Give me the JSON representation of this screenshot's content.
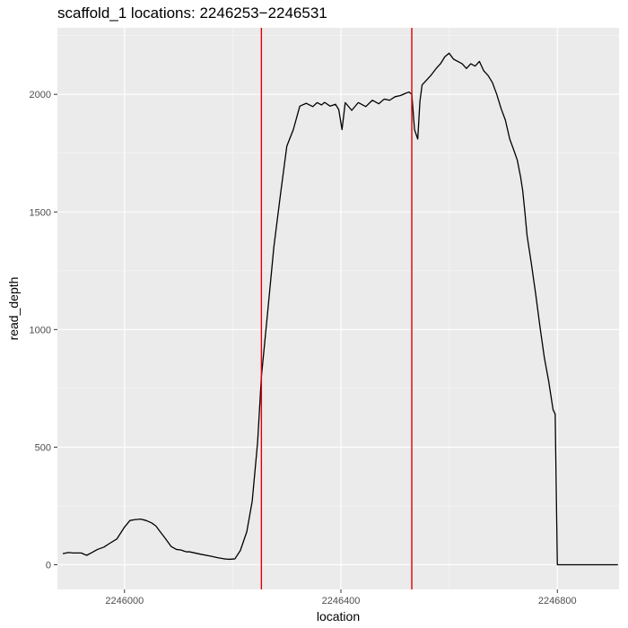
{
  "chart_data": {
    "type": "line",
    "title": "scaffold_1 locations: 2246253−2246531",
    "xlabel": "location",
    "ylabel": "read_depth",
    "xlim": [
      2245876,
      2246914
    ],
    "ylim": [
      -105,
      2283
    ],
    "x_ticks": [
      2246000,
      2246400,
      2246800
    ],
    "x_tick_labels": [
      "2246000",
      "2246400",
      "2246800"
    ],
    "y_ticks": [
      0,
      500,
      1000,
      1500,
      2000
    ],
    "y_tick_labels": [
      "0",
      "500",
      "1000",
      "1500",
      "2000"
    ],
    "grid": true,
    "vlines": [
      {
        "x": 2246253,
        "color": "#e00000"
      },
      {
        "x": 2246531,
        "color": "#e00000"
      }
    ],
    "series": [
      {
        "name": "read_depth",
        "color": "#000000",
        "x": [
          2245886,
          2245896,
          2245906,
          2245920,
          2245930,
          2245940,
          2245950,
          2245962,
          2245972,
          2245986,
          2246000,
          2246010,
          2246020,
          2246030,
          2246040,
          2246050,
          2246058,
          2246066,
          2246076,
          2246086,
          2246096,
          2246104,
          2246110,
          2246114,
          2246120,
          2246140,
          2246160,
          2246172,
          2246184,
          2246194,
          2246204,
          2246214,
          2246226,
          2246236,
          2246246,
          2246253,
          2246264,
          2246276,
          2246288,
          2246300,
          2246312,
          2246324,
          2246336,
          2246348,
          2246356,
          2246364,
          2246370,
          2246380,
          2246390,
          2246396,
          2246402,
          2246408,
          2246420,
          2246432,
          2246446,
          2246458,
          2246470,
          2246480,
          2246490,
          2246500,
          2246510,
          2246520,
          2246526,
          2246531,
          2246536,
          2246542,
          2246546,
          2246550,
          2246558,
          2246566,
          2246576,
          2246584,
          2246592,
          2246600,
          2246608,
          2246616,
          2246624,
          2246632,
          2246640,
          2246648,
          2246656,
          2246664,
          2246672,
          2246680,
          2246688,
          2246696,
          2246704,
          2246712,
          2246720,
          2246726,
          2246732,
          2246736,
          2246740,
          2246744,
          2246752,
          2246760,
          2246768,
          2246776,
          2246784,
          2246792,
          2246796,
          2246800,
          2246804,
          2246808,
          2246810,
          2246818,
          2246830,
          2246850,
          2246880,
          2246912
        ],
        "y": [
          47,
          52,
          50,
          50,
          40,
          52,
          65,
          75,
          90,
          110,
          160,
          188,
          192,
          194,
          188,
          178,
          165,
          140,
          110,
          78,
          65,
          63,
          58,
          55,
          55,
          45,
          36,
          30,
          25,
          23,
          25,
          60,
          140,
          270,
          520,
          800,
          1060,
          1350,
          1570,
          1780,
          1850,
          1950,
          1962,
          1948,
          1965,
          1955,
          1966,
          1950,
          1958,
          1935,
          1850,
          1965,
          1932,
          1965,
          1948,
          1975,
          1960,
          1980,
          1975,
          1990,
          1995,
          2005,
          2010,
          2000,
          1850,
          1810,
          1970,
          2040,
          2060,
          2080,
          2110,
          2130,
          2160,
          2175,
          2150,
          2140,
          2130,
          2110,
          2130,
          2120,
          2140,
          2100,
          2080,
          2050,
          2000,
          1940,
          1890,
          1810,
          1760,
          1720,
          1650,
          1590,
          1500,
          1400,
          1280,
          1150,
          1010,
          880,
          780,
          660,
          640,
          0,
          0,
          0,
          0,
          0,
          0,
          0,
          0,
          0
        ]
      }
    ]
  }
}
